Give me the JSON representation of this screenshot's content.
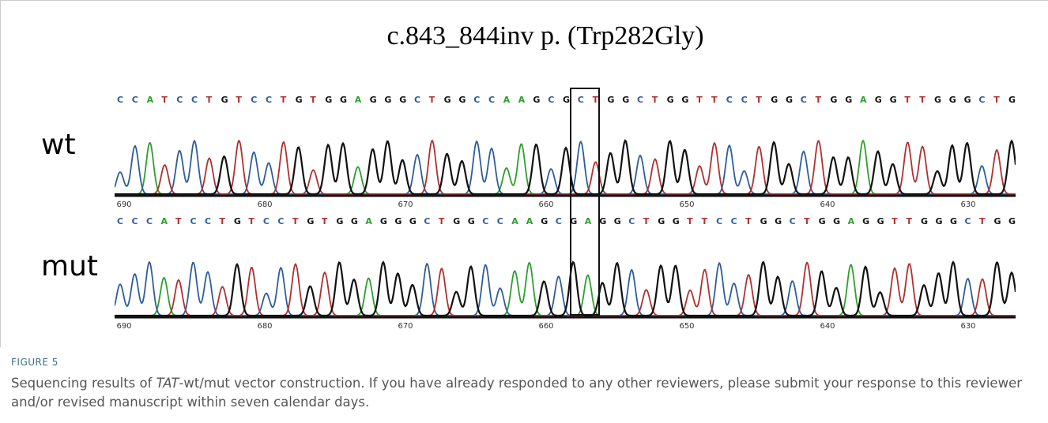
{
  "title": "c.843_844inv p. (Trp282Gly)",
  "traces": [
    {
      "label": "wt",
      "sequence": "CCATCCTGTCCTGTGGAGGGCTGGCCAAGCGCTGGCTGGTTCCTGGCTGGAGGTTGGGCTG",
      "ticks": [
        690,
        680,
        670,
        660,
        650,
        640,
        630
      ]
    },
    {
      "label": "mut",
      "sequence": "CCCATCCTGTCCTGTGGAGGGCTGGCCAAGCGAGGCTGGTTCCTGGCTGGAGGTTGGGCTGG",
      "ticks": [
        690,
        680,
        670,
        660,
        650,
        640,
        630
      ]
    }
  ],
  "caption": {
    "label": "FIGURE 5",
    "parts": [
      "Sequencing results of ",
      "TAT",
      "-wt/mut vector construction. If you have already responded to any other reviewers, please submit your response to this reviewer and/or revised manuscript within seven calendar days."
    ]
  }
}
